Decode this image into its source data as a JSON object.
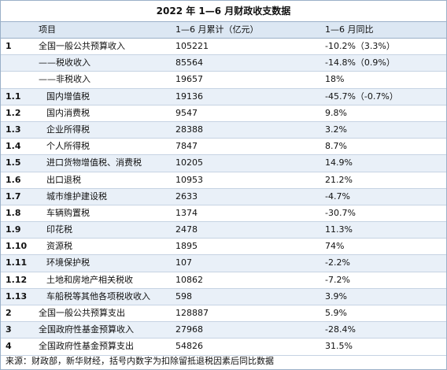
{
  "title": "2022 年 1—6 月财政收支数据",
  "header": {
    "item": "项目",
    "value": "1—6 月累计（亿元）",
    "pct": "1—6 月同比"
  },
  "rows": [
    {
      "idx": "1",
      "name": "全国一般公共预算收入",
      "sub": false,
      "value": "105221",
      "pct": "-10.2%（3.3%）"
    },
    {
      "idx": "",
      "name": "——税收收入",
      "sub": false,
      "value": "85564",
      "pct": "-14.8%（0.9%）"
    },
    {
      "idx": "",
      "name": "——非税收入",
      "sub": false,
      "value": "19657",
      "pct": "18%"
    },
    {
      "idx": "1.1",
      "name": "国内增值税",
      "sub": true,
      "value": "19136",
      "pct": "-45.7%（-0.7%）"
    },
    {
      "idx": "1.2",
      "name": "国内消费税",
      "sub": true,
      "value": "9547",
      "pct": "9.8%"
    },
    {
      "idx": "1.3",
      "name": "企业所得税",
      "sub": true,
      "value": "28388",
      "pct": "3.2%"
    },
    {
      "idx": "1.4",
      "name": "个人所得税",
      "sub": true,
      "value": "7847",
      "pct": "8.7%"
    },
    {
      "idx": "1.5",
      "name": "进口货物增值税、消费税",
      "sub": true,
      "value": "10205",
      "pct": "14.9%"
    },
    {
      "idx": "1.6",
      "name": "出口退税",
      "sub": true,
      "value": "10953",
      "pct": "21.2%"
    },
    {
      "idx": "1.7",
      "name": "城市维护建设税",
      "sub": true,
      "value": "2633",
      "pct": "-4.7%"
    },
    {
      "idx": "1.8",
      "name": "车辆购置税",
      "sub": true,
      "value": "1374",
      "pct": "-30.7%"
    },
    {
      "idx": "1.9",
      "name": "印花税",
      "sub": true,
      "value": "2478",
      "pct": "11.3%"
    },
    {
      "idx": "1.10",
      "name": "资源税",
      "sub": true,
      "value": "1895",
      "pct": "74%"
    },
    {
      "idx": "1.11",
      "name": "环境保护税",
      "sub": true,
      "value": "107",
      "pct": "-2.2%"
    },
    {
      "idx": "1.12",
      "name": "土地和房地产相关税收",
      "sub": true,
      "value": "10862",
      "pct": "-7.2%"
    },
    {
      "idx": "1.13",
      "name": "车船税等其他各项税收收入",
      "sub": true,
      "value": "598",
      "pct": "3.9%"
    },
    {
      "idx": "2",
      "name": "全国一般公共预算支出",
      "sub": false,
      "value": "128887",
      "pct": "5.9%"
    },
    {
      "idx": "3",
      "name": "全国政府性基金预算收入",
      "sub": false,
      "value": "27968",
      "pct": "-28.4%"
    },
    {
      "idx": "4",
      "name": "全国政府性基金预算支出",
      "sub": false,
      "value": "54826",
      "pct": "31.5%"
    }
  ],
  "source": "来源：财政部，新华财经，括号内数字为扣除留抵退税因素后同比数据"
}
